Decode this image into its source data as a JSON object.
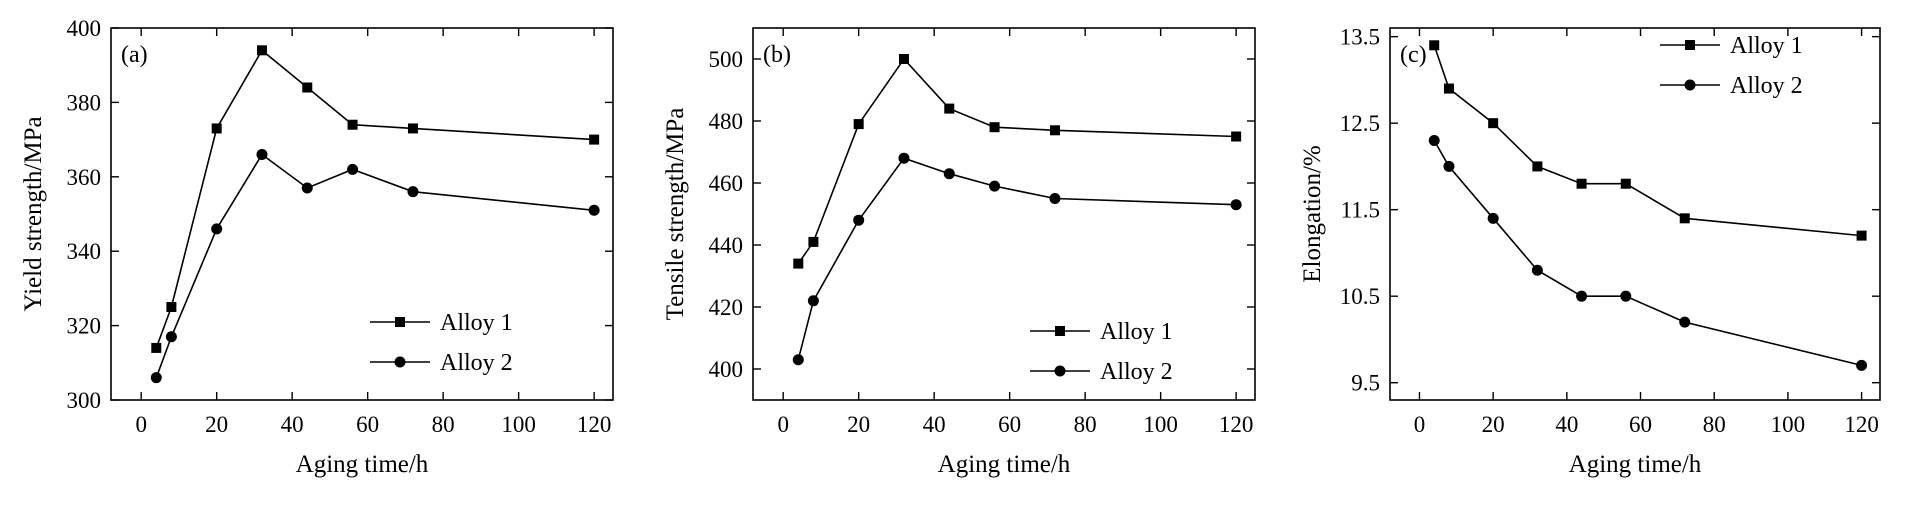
{
  "colors": {
    "ink": "#000000",
    "background": "#ffffff"
  },
  "chart_data": [
    {
      "id": "a",
      "type": "line",
      "panel_label": "(a)",
      "xlabel": "Aging time/h",
      "ylabel": "Yield strength/MPa",
      "xlim": [
        -8,
        125
      ],
      "ylim": [
        300,
        400
      ],
      "xticks": [
        0,
        20,
        40,
        60,
        80,
        100,
        120
      ],
      "yticks": [
        300,
        320,
        340,
        360,
        380,
        400
      ],
      "grid": false,
      "legend_position": "lower-right",
      "series": [
        {
          "name": "Alloy 1",
          "marker": "square",
          "x": [
            4,
            8,
            20,
            32,
            44,
            56,
            72,
            120
          ],
          "y": [
            314,
            325,
            373,
            394,
            384,
            374,
            373,
            370
          ]
        },
        {
          "name": "Alloy 2",
          "marker": "circle",
          "x": [
            4,
            8,
            20,
            32,
            44,
            56,
            72,
            120
          ],
          "y": [
            306,
            317,
            346,
            366,
            357,
            362,
            356,
            351
          ]
        }
      ]
    },
    {
      "id": "b",
      "type": "line",
      "panel_label": "(b)",
      "xlabel": "Aging time/h",
      "ylabel": "Tensile strength/MPa",
      "xlim": [
        -8,
        125
      ],
      "ylim": [
        390,
        510
      ],
      "xticks": [
        0,
        20,
        40,
        60,
        80,
        100,
        120
      ],
      "yticks": [
        400,
        420,
        440,
        460,
        480,
        500
      ],
      "grid": false,
      "legend_position": "lower-right",
      "series": [
        {
          "name": "Alloy 1",
          "marker": "square",
          "x": [
            4,
            8,
            20,
            32,
            44,
            56,
            72,
            120
          ],
          "y": [
            434,
            441,
            479,
            500,
            484,
            478,
            477,
            475
          ]
        },
        {
          "name": "Alloy 2",
          "marker": "circle",
          "x": [
            4,
            8,
            20,
            32,
            44,
            56,
            72,
            120
          ],
          "y": [
            403,
            422,
            448,
            468,
            463,
            459,
            455,
            453
          ]
        }
      ]
    },
    {
      "id": "c",
      "type": "line",
      "panel_label": "(c)",
      "xlabel": "Aging time/h",
      "ylabel": "Elongation/%",
      "xlim": [
        -8,
        125
      ],
      "ylim": [
        9.3,
        13.6
      ],
      "xticks": [
        0,
        20,
        40,
        60,
        80,
        100,
        120
      ],
      "yticks": [
        9.5,
        10.5,
        11.5,
        12.5,
        13.5
      ],
      "ytick_labels": [
        "9.5",
        "10.5",
        "11.5",
        "12.5",
        "13.5"
      ],
      "grid": false,
      "legend_position": "top-right",
      "series": [
        {
          "name": "Alloy 1",
          "marker": "square",
          "x": [
            4,
            8,
            20,
            32,
            44,
            56,
            72,
            120
          ],
          "y": [
            13.4,
            12.9,
            12.5,
            12.0,
            11.8,
            11.8,
            11.4,
            11.2
          ]
        },
        {
          "name": "Alloy 2",
          "marker": "circle",
          "x": [
            4,
            8,
            20,
            32,
            44,
            56,
            72,
            120
          ],
          "y": [
            12.3,
            12.0,
            11.4,
            10.8,
            10.5,
            10.5,
            10.2,
            9.7
          ]
        }
      ]
    }
  ]
}
